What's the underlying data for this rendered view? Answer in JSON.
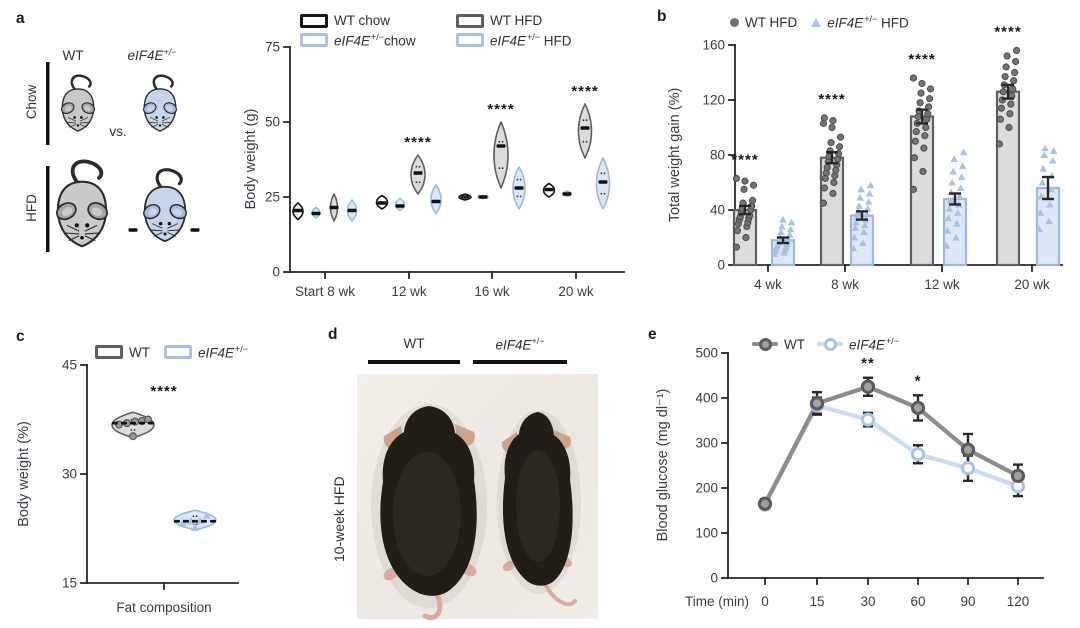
{
  "colors": {
    "text": "#2e3338",
    "axis": "#24282c",
    "wt_chow": "#151515",
    "wt_hfd_stroke": "#5f5f5f",
    "wt_hfd_fill": "#dcdcdc",
    "ko_stroke": "#9db8de",
    "ko_fill": "#dde7f5",
    "ko_marker": "#a9c2e4",
    "wt_dot_fill": "#737373",
    "wt_dot_stroke": "#4d4d4d",
    "wt_line": "#8c8c8c",
    "wt_marker_fill": "#a0a0a0",
    "wt_marker_stroke": "#5a5a5a",
    "ko_line": "#c9dbf2",
    "err": "#26282b",
    "cartoon_wt_body": "#c9c9c9",
    "cartoon_wt_ear": "#a3a3a3",
    "cartoon_ko_body": "#c7d4e9",
    "cartoon_ko_ear": "#a6badb",
    "cartoon_outline": "#2b2b2b",
    "photo_mouse": "#231d18",
    "photo_ear": "#c8a489",
    "photo_pink": "#d9aba1"
  },
  "panels": {
    "a": {
      "letter": "a",
      "mice": {
        "col_wt": "WT",
        "col_ko_italic": "eIF4E",
        "col_ko_sup": "+/−",
        "row_top": "Chow",
        "row_bottom": "HFD",
        "vs": "vs."
      },
      "legend": {
        "items": [
          {
            "pre": "WT chow",
            "italic": "",
            "sup": "",
            "post": "",
            "swatch": "wt_chow"
          },
          {
            "pre": "WT HFD",
            "italic": "",
            "sup": "",
            "post": "",
            "swatch": "wt_hfd"
          },
          {
            "pre": "",
            "italic": "eIF4E",
            "sup": "+/−",
            "post": "chow",
            "swatch": "ko"
          },
          {
            "pre": "",
            "italic": "eIF4E",
            "sup": "+/−",
            "post": " HFD",
            "swatch": "ko"
          }
        ]
      }
    },
    "b": {
      "letter": "b",
      "legend": {
        "items": [
          {
            "pre": "WT HFD",
            "italic": "",
            "sup": "",
            "post": "",
            "marker": "circle"
          },
          {
            "pre": "",
            "italic": "eIF4E",
            "sup": "+/−",
            "post": " HFD",
            "marker": "triangle"
          }
        ]
      }
    },
    "c": {
      "letter": "c",
      "legend": {
        "items": [
          {
            "pre": "WT",
            "italic": "",
            "sup": "",
            "post": "",
            "swatch": "wt_hfd"
          },
          {
            "pre": "",
            "italic": "eIF4E",
            "sup": "+/−",
            "post": "",
            "swatch": "ko"
          }
        ]
      }
    },
    "d": {
      "letter": "d",
      "label_wt": "WT",
      "label_ko_italic": "eIF4E",
      "label_ko_sup": "+/−",
      "side_label": "10-week HFD"
    },
    "e": {
      "letter": "e",
      "legend": {
        "items": [
          {
            "pre": "WT",
            "italic": "",
            "sup": "",
            "post": "",
            "glyph": "wt"
          },
          {
            "pre": "",
            "italic": "eIF4E",
            "sup": "+/−",
            "post": "",
            "glyph": "ko"
          }
        ]
      }
    }
  },
  "chart_data": [
    {
      "panel": "a",
      "type": "violin",
      "ylabel": "Body weight (g)",
      "ylim": [
        0,
        75
      ],
      "yticks": [
        0,
        25,
        50,
        75
      ],
      "categories": [
        "Start 8 wk",
        "12 wk",
        "16 wk",
        "20 wk"
      ],
      "series": [
        {
          "name": "WT chow",
          "style": "wt_chow",
          "median": [
            20.5,
            23,
            25,
            27.5
          ],
          "lo": [
            17.5,
            21,
            24,
            25
          ],
          "hi": [
            23,
            25.5,
            26,
            29.5
          ],
          "hw": [
            5,
            5.5,
            6,
            5.5
          ]
        },
        {
          "name": "eIF4E+/− chow",
          "style": "ko",
          "median": [
            19.5,
            22,
            25,
            26
          ],
          "lo": [
            18,
            20.5,
            24.5,
            25.2
          ],
          "hi": [
            21.5,
            24.5,
            25.5,
            27
          ],
          "hw": [
            4,
            4.5,
            5,
            4
          ]
        },
        {
          "name": "WT HFD",
          "style": "wt_hfd",
          "median": [
            21.5,
            33,
            42,
            48
          ],
          "lo": [
            17,
            26,
            28,
            38
          ],
          "hi": [
            26,
            39,
            50,
            56
          ],
          "hw": [
            3.5,
            7,
            7,
            6.5
          ]
        },
        {
          "name": "eIF4E+/− HFD",
          "style": "ko",
          "median": [
            20.5,
            23.5,
            28,
            30
          ],
          "lo": [
            17,
            19.5,
            21,
            21
          ],
          "hi": [
            24,
            29,
            35,
            38
          ],
          "hw": [
            4.5,
            5,
            6,
            6.5
          ]
        }
      ],
      "significance": {
        "series": "WT HFD",
        "labels": [
          "",
          "****",
          "****",
          "****"
        ]
      }
    },
    {
      "panel": "b",
      "type": "bar",
      "ylabel": "Total weight gain (%)",
      "ylim": [
        0,
        160
      ],
      "yticks": [
        0,
        40,
        80,
        120,
        160
      ],
      "categories": [
        "4 wk",
        "8 wk",
        "12 wk",
        "20 wk"
      ],
      "series": [
        {
          "name": "WT HFD",
          "style": "wt_hfd",
          "marker": "circle",
          "means": [
            40,
            78,
            108,
            126
          ],
          "sem": [
            3,
            4,
            5,
            5
          ],
          "points": [
            [
              13,
              20,
              25,
              28,
              30,
              31,
              33,
              34,
              35,
              36,
              38,
              40,
              41,
              43,
              45,
              47,
              55,
              58,
              61,
              63
            ],
            [
              45,
              52,
              56,
              60,
              63,
              65,
              67,
              69,
              71,
              73,
              75,
              77,
              79,
              81,
              83,
              86,
              89,
              93,
              100,
              103,
              105,
              107
            ],
            [
              55,
              68,
              78,
              85,
              90,
              94,
              97,
              100,
              103,
              106,
              108,
              110,
              112,
              115,
              118,
              121,
              125,
              128,
              132,
              136
            ],
            [
              88,
              100,
              106,
              110,
              114,
              117,
              120,
              123,
              126,
              128,
              131,
              134,
              137,
              140,
              144,
              148,
              152,
              156
            ]
          ]
        },
        {
          "name": "eIF4E+/− HFD",
          "style": "ko",
          "marker": "triangle",
          "means": [
            18,
            36,
            48,
            56
          ],
          "sem": [
            2,
            3,
            4,
            8
          ],
          "points": [
            [
              8,
              9,
              10,
              11,
              12,
              13,
              14,
              15,
              16,
              17,
              18,
              19,
              20,
              22,
              24,
              26,
              28,
              31,
              33
            ],
            [
              12,
              16,
              20,
              24,
              27,
              29,
              31,
              33,
              35,
              37,
              39,
              41,
              43,
              46,
              49,
              52,
              55,
              58
            ],
            [
              14,
              20,
              25,
              30,
              34,
              38,
              41,
              44,
              47,
              50,
              53,
              56,
              60,
              64,
              68,
              72,
              77,
              82
            ],
            [
              26,
              32,
              38,
              44,
              50,
              55,
              60,
              65,
              70,
              76,
              80,
              83,
              85
            ]
          ]
        }
      ],
      "significance": [
        "****",
        "****",
        "****",
        "****"
      ]
    },
    {
      "panel": "c",
      "type": "violin",
      "ylabel": "Body weight (%)",
      "xlabel": "Fat composition",
      "ylim": [
        15,
        45
      ],
      "yticks": [
        15,
        30,
        45
      ],
      "categories": [
        "Fat composition"
      ],
      "series": [
        {
          "name": "WT",
          "style": "wt_hfd",
          "marker": "circle",
          "median": 37,
          "lo": 35,
          "hi": 38.5,
          "points": [
            35.2,
            36.8,
            37.0,
            37.2,
            37.3,
            37.5
          ],
          "point_dx": [
            0,
            -14,
            -6,
            2,
            9,
            15
          ]
        },
        {
          "name": "eIF4E+/−",
          "style": "ko",
          "marker": "triangle",
          "median": 23.5,
          "lo": 22.3,
          "hi": 25,
          "points": [
            22.6,
            23.3,
            23.5,
            23.6,
            24.3
          ],
          "point_dx": [
            0,
            -12,
            -4,
            5,
            12
          ]
        }
      ],
      "significance": "****"
    },
    {
      "panel": "e",
      "type": "line",
      "ylabel": "Blood glucose (mg dl⁻¹)",
      "xlabel": "Time (min)",
      "x": [
        0,
        15,
        30,
        60,
        90,
        120
      ],
      "ylim": [
        0,
        500
      ],
      "yticks": [
        0,
        100,
        200,
        300,
        400,
        500
      ],
      "series": [
        {
          "name": "WT",
          "style": "wt",
          "values": [
            165,
            388,
            425,
            378,
            285,
            227
          ],
          "sem": [
            10,
            25,
            20,
            28,
            35,
            25
          ]
        },
        {
          "name": "eIF4E+/−",
          "style": "ko",
          "values": [
            163,
            383,
            352,
            275,
            244,
            204
          ],
          "sem": [
            8,
            18,
            15,
            20,
            28,
            22
          ]
        }
      ],
      "significance": [
        {
          "x": 30,
          "label": "**"
        },
        {
          "x": 60,
          "label": "*"
        }
      ]
    }
  ]
}
